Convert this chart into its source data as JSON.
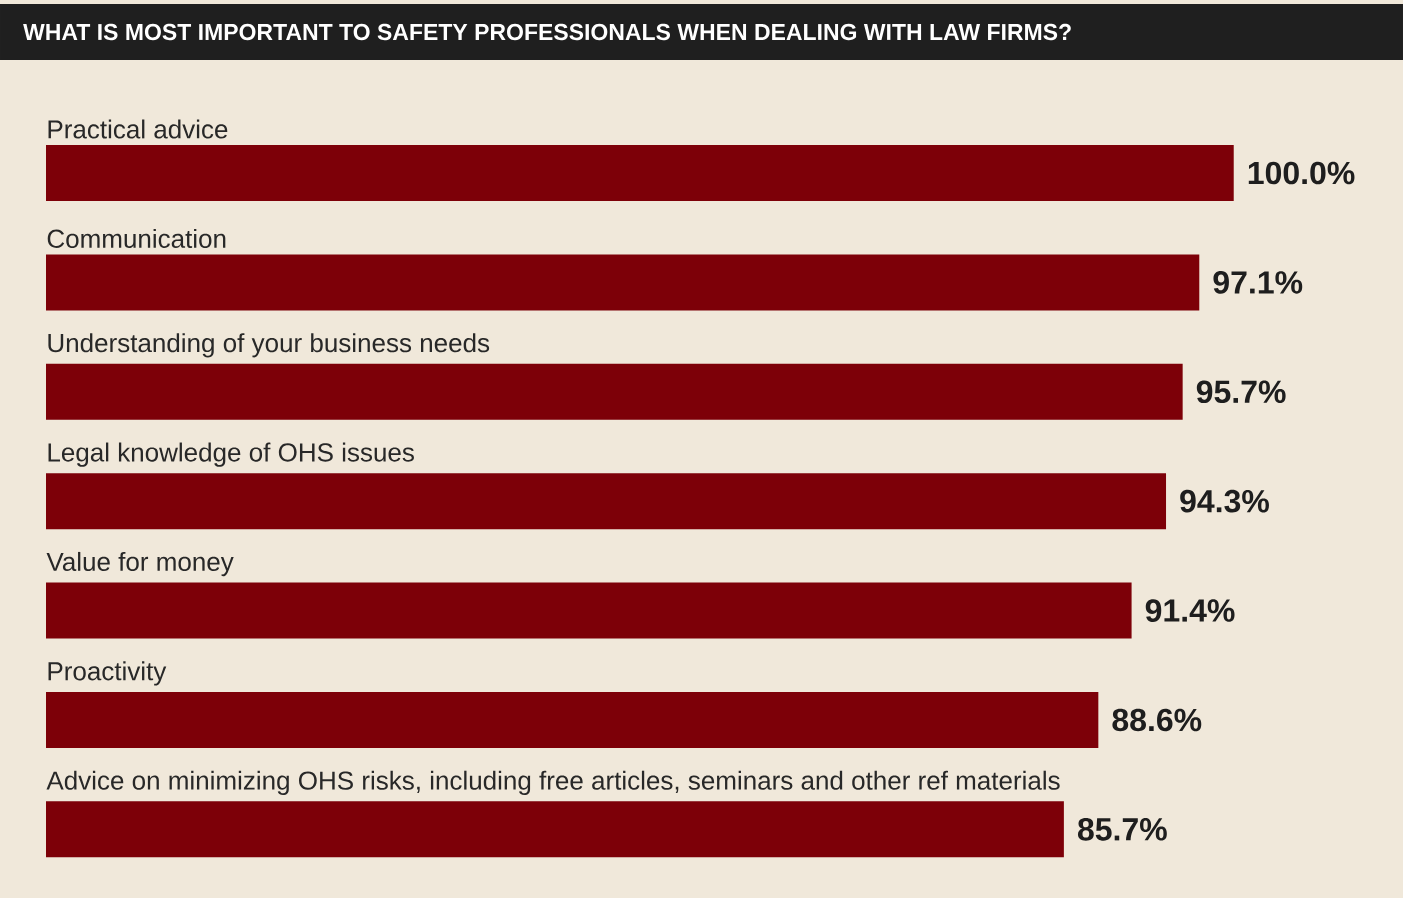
{
  "chart_data": {
    "type": "bar",
    "orientation": "horizontal",
    "title": "WHAT IS MOST IMPORTANT TO SAFETY PROFESSIONALS WHEN DEALING WITH LAW FIRMS?",
    "categories": [
      "Practical advice",
      "Communication",
      "Understanding of your business needs",
      "Legal knowledge of OHS issues",
      "Value for money",
      "Proactivity",
      "Advice on minimizing OHS risks, including free articles, seminars and other ref materials"
    ],
    "values": [
      100.0,
      97.1,
      95.7,
      94.3,
      91.4,
      88.6,
      85.7
    ],
    "value_labels": [
      "100.0%",
      "97.1%",
      "95.7%",
      "94.3%",
      "91.4%",
      "88.6%",
      "85.7%"
    ],
    "color": "#7d0008"
  }
}
